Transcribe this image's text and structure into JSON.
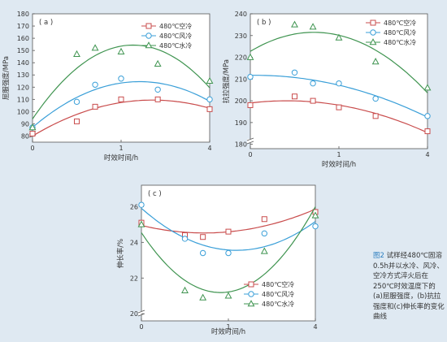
{
  "series_styles": [
    {
      "name": "480℃空冷",
      "color": "#c94c4c",
      "marker": "square"
    },
    {
      "name": "480℃风冷",
      "color": "#3a9fd8",
      "marker": "circle"
    },
    {
      "name": "480℃水冷",
      "color": "#3f9450",
      "marker": "triangle"
    }
  ],
  "caption": {
    "fig": "图2",
    "text": "试样经480℃固溶0.5h并以水冷、风冷、空冷方式淬火后在250℃时效温度下的 (a)屈服强度，(b)抗拉强度和(c)伸长率的变化曲线"
  },
  "chart_data": [
    {
      "id": "a",
      "type": "line",
      "panel_label": "( a )",
      "xlabel": "时效时间/h",
      "ylabel": "屈服强度/MPa",
      "x_scale": "sqrt",
      "xlim": [
        0,
        4
      ],
      "x_ticks": [
        0,
        1,
        4
      ],
      "ylim": [
        75,
        180
      ],
      "y_ticks": [
        80,
        90,
        100,
        110,
        120,
        130,
        140,
        150,
        160,
        170,
        180
      ],
      "legend": "top-right",
      "grid": false,
      "series": [
        {
          "name": "480℃空冷",
          "points": [
            [
              0,
              82
            ],
            [
              0.25,
              92
            ],
            [
              0.5,
              104
            ],
            [
              1,
              110
            ],
            [
              2,
              110
            ],
            [
              4,
              102
            ]
          ]
        },
        {
          "name": "480℃风冷",
          "points": [
            [
              0,
              87
            ],
            [
              0.25,
              108
            ],
            [
              0.5,
              122
            ],
            [
              1,
              127
            ],
            [
              2,
              118
            ],
            [
              4,
              110
            ]
          ]
        },
        {
          "name": "480℃水冷",
          "points": [
            [
              0,
              87
            ],
            [
              0.25,
              147
            ],
            [
              0.5,
              152
            ],
            [
              1,
              149
            ],
            [
              2,
              139
            ],
            [
              4,
              125
            ]
          ]
        }
      ]
    },
    {
      "id": "b",
      "type": "line",
      "panel_label": "( b )",
      "xlabel": "时效时间/h",
      "ylabel": "抗拉强度/MPa",
      "x_scale": "sqrt",
      "xlim": [
        0,
        4
      ],
      "x_ticks": [
        0,
        1,
        4
      ],
      "ylim": [
        178,
        240
      ],
      "y_ticks": [
        180,
        190,
        200,
        210,
        220,
        230,
        240
      ],
      "legend": "top-right",
      "grid": false,
      "series": [
        {
          "name": "480℃空冷",
          "points": [
            [
              0,
              198
            ],
            [
              0.25,
              202
            ],
            [
              0.5,
              200
            ],
            [
              1,
              197
            ],
            [
              2,
              193
            ],
            [
              4,
              186
            ]
          ]
        },
        {
          "name": "480℃风冷",
          "points": [
            [
              0,
              211
            ],
            [
              0.25,
              213
            ],
            [
              0.5,
              208
            ],
            [
              1,
              208
            ],
            [
              2,
              201
            ],
            [
              4,
              193
            ]
          ]
        },
        {
          "name": "480℃水冷",
          "points": [
            [
              0,
              220
            ],
            [
              0.25,
              235
            ],
            [
              0.5,
              234
            ],
            [
              1,
              229
            ],
            [
              2,
              218
            ],
            [
              4,
              206
            ]
          ]
        }
      ]
    },
    {
      "id": "c",
      "type": "line",
      "panel_label": "( c )",
      "xlabel": "时效时间/h",
      "ylabel": "伸长率/%",
      "x_scale": "sqrt",
      "xlim": [
        0,
        4
      ],
      "x_ticks": [
        0,
        1,
        4
      ],
      "ylim": [
        19.6,
        27.2
      ],
      "y_ticks": [
        20,
        22,
        24,
        26
      ],
      "legend": "bottom-right",
      "grid": false,
      "series": [
        {
          "name": "480℃空冷",
          "points": [
            [
              0,
              25.1
            ],
            [
              0.25,
              24.4
            ],
            [
              0.5,
              24.3
            ],
            [
              1,
              24.6
            ],
            [
              2,
              25.3
            ],
            [
              4,
              25.7
            ]
          ]
        },
        {
          "name": "480℃风冷",
          "points": [
            [
              0,
              26.1
            ],
            [
              0.25,
              24.2
            ],
            [
              0.5,
              23.4
            ],
            [
              1,
              23.4
            ],
            [
              2,
              24.5
            ],
            [
              4,
              24.9
            ]
          ]
        },
        {
          "name": "480℃水冷",
          "points": [
            [
              0,
              25.0
            ],
            [
              0.25,
              21.3
            ],
            [
              0.5,
              20.9
            ],
            [
              1,
              21.0
            ],
            [
              2,
              23.5
            ],
            [
              4,
              25.5
            ]
          ]
        }
      ]
    }
  ]
}
